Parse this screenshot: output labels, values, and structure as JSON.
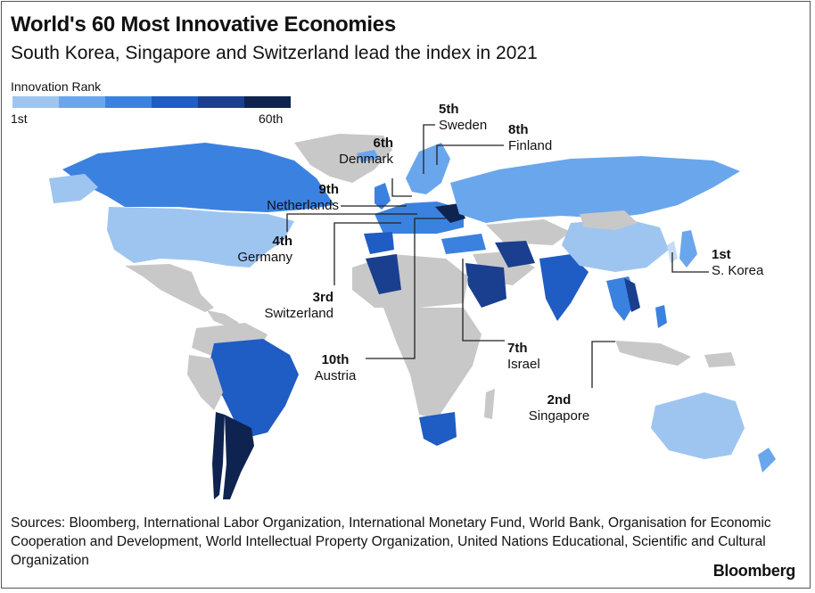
{
  "title": "World's 60 Most Innovative Economies",
  "subtitle": "South Korea, Singapore and Switzerland lead the index in 2021",
  "legend": {
    "title": "Innovation Rank",
    "min_label": "1st",
    "max_label": "60th",
    "colors": [
      "#c6dcf5",
      "#9ec5f0",
      "#6aa6ec",
      "#3b82e0",
      "#1f5cc4",
      "#1a3f8f",
      "#0e2350"
    ]
  },
  "colors": {
    "unranked": "#c8c8c8",
    "background": "#ffffff"
  },
  "callouts": [
    {
      "rank": "1st",
      "country": "S. Korea"
    },
    {
      "rank": "2nd",
      "country": "Singapore"
    },
    {
      "rank": "3rd",
      "country": "Switzerland"
    },
    {
      "rank": "4th",
      "country": "Germany"
    },
    {
      "rank": "5th",
      "country": "Sweden"
    },
    {
      "rank": "6th",
      "country": "Denmark"
    },
    {
      "rank": "7th",
      "country": "Israel"
    },
    {
      "rank": "8th",
      "country": "Finland"
    },
    {
      "rank": "9th",
      "country": "Netherlands"
    },
    {
      "rank": "10th",
      "country": "Austria"
    }
  ],
  "sources": "Sources: Bloomberg, International Labor Organization, International Monetary Fund, World Bank, Organisation for Economic Cooperation and Development, World Intellectual Property Organization, United Nations Educational, Scientific and Cultural Organization",
  "brand": "Bloomberg"
}
